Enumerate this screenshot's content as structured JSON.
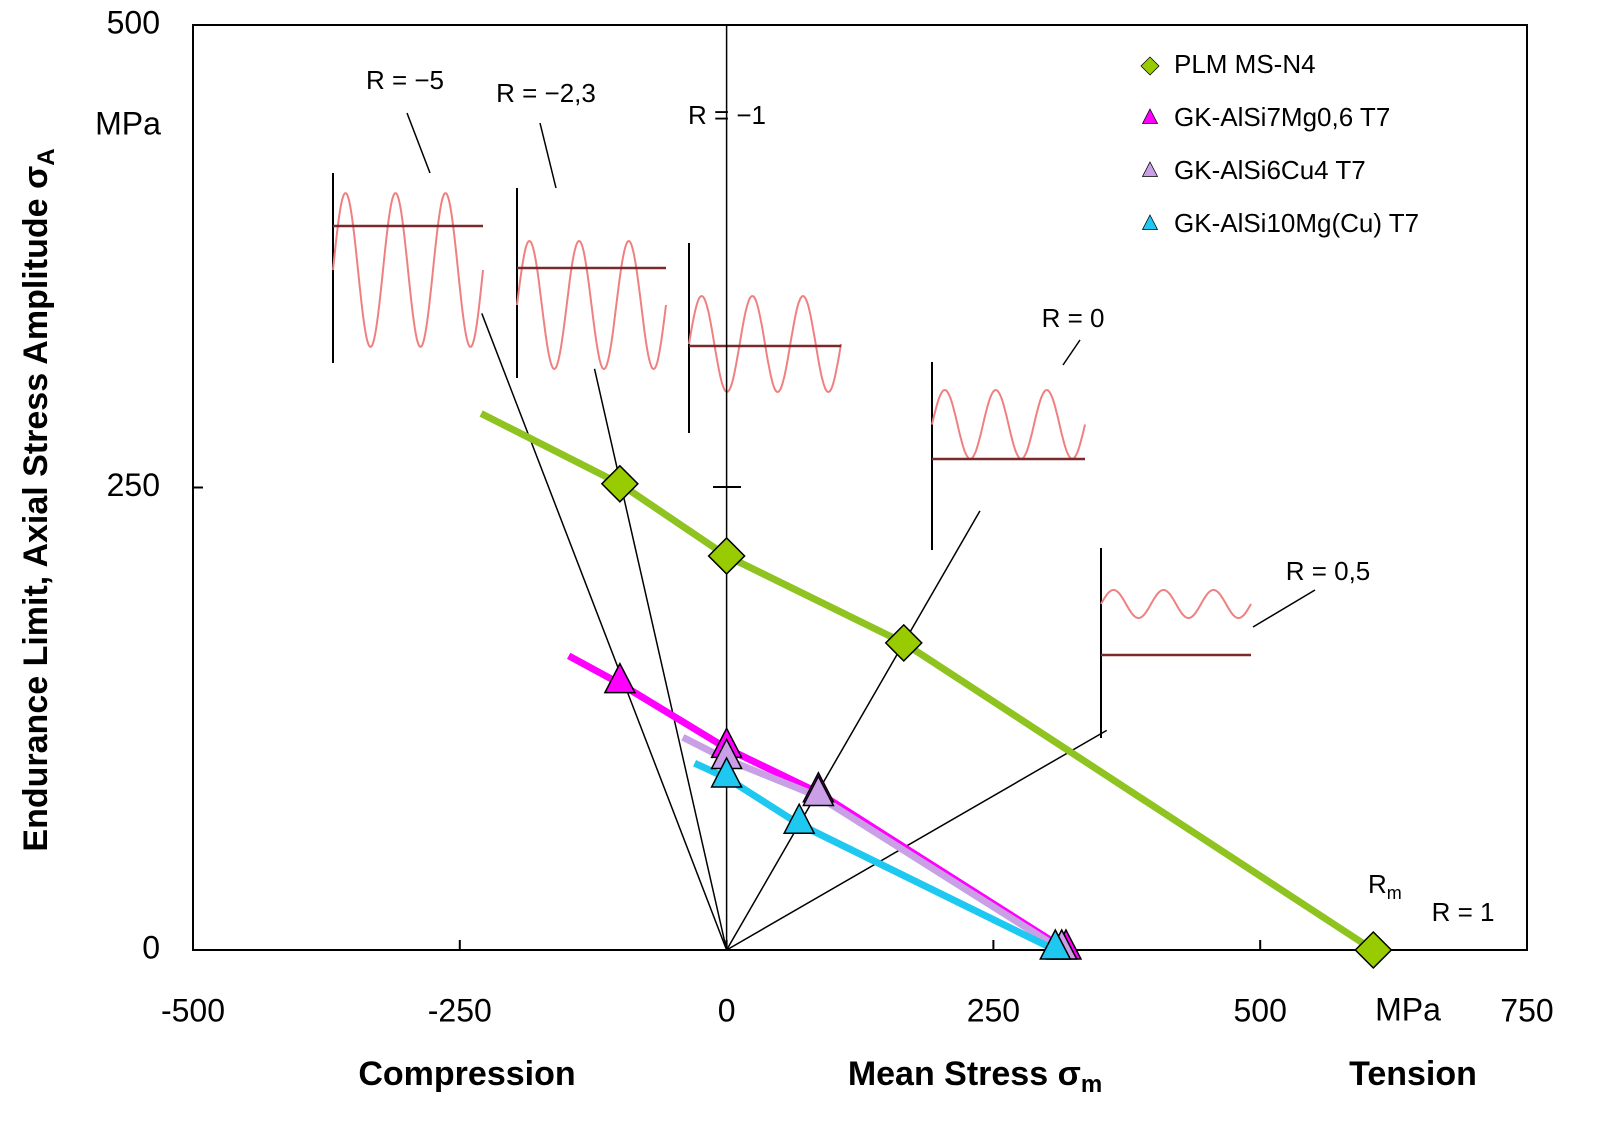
{
  "chart_data": {
    "type": "line",
    "x_label": {
      "text": "Mean Stress  σ",
      "sub": "m"
    },
    "y_label": {
      "text": "Endurance Limit, Axial Stress Amplitude  σ",
      "sub": "A"
    },
    "x_unit": "MPa",
    "y_unit": "MPa",
    "x_left_note": "Compression",
    "x_right_note": "Tension",
    "rm_label": {
      "text": "R",
      "sub": "m"
    },
    "xlim": [
      -500,
      750
    ],
    "xticks": [
      -500,
      -250,
      0,
      250,
      500,
      750
    ],
    "ylim": [
      0,
      500
    ],
    "yticks": [
      0,
      250,
      500
    ],
    "ratio_lines": [
      {
        "label": "R = −5",
        "R": -5
      },
      {
        "label": "R = −2,3",
        "R": -2.3
      },
      {
        "label": "R = −1",
        "R": -1
      },
      {
        "label": "R = 0",
        "R": 0
      },
      {
        "label": "R = 0,5",
        "R": 0.5
      },
      {
        "label": "R = 1",
        "R": 1
      }
    ],
    "series": [
      {
        "name": "PLM MS-N4",
        "color": "#99cc00",
        "line_color": "#8fc31f",
        "marker": "diamond",
        "x": [
          -100,
          0,
          166,
          606
        ],
        "values": [
          252,
          213,
          166,
          0
        ],
        "fit_x": [
          -230,
          -100,
          0,
          166,
          606
        ],
        "fit_values": [
          290,
          252,
          213,
          166,
          0
        ]
      },
      {
        "name": "GK-AlSi7Mg0,6 T7",
        "color": "#ff00ff",
        "line_color": "#ff00ff",
        "marker": "triangle",
        "x": [
          -100,
          0,
          86,
          318
        ],
        "values": [
          144,
          109,
          85,
          0
        ],
        "fit_x": [
          -148,
          -100,
          0,
          86,
          318
        ],
        "fit_values": [
          159,
          144,
          109,
          85,
          0
        ]
      },
      {
        "name": "GK-AlSi6Cu4 T7",
        "color": "#c9a0e6",
        "line_color": "#c9a0e6",
        "marker": "triangle",
        "x": [
          0,
          86,
          314
        ],
        "values": [
          103,
          83,
          0
        ],
        "fit_x": [
          -41,
          0,
          86,
          314
        ],
        "fit_values": [
          115,
          103,
          83,
          0
        ]
      },
      {
        "name": "GK-AlSi10Mg(Cu) T7",
        "color": "#1ec8f0",
        "line_color": "#1ec8f0",
        "marker": "triangle",
        "x": [
          0,
          68,
          308
        ],
        "values": [
          93,
          68,
          0
        ],
        "fit_x": [
          -30,
          0,
          68,
          308
        ],
        "fit_values": [
          101,
          93,
          68,
          0
        ]
      }
    ]
  }
}
